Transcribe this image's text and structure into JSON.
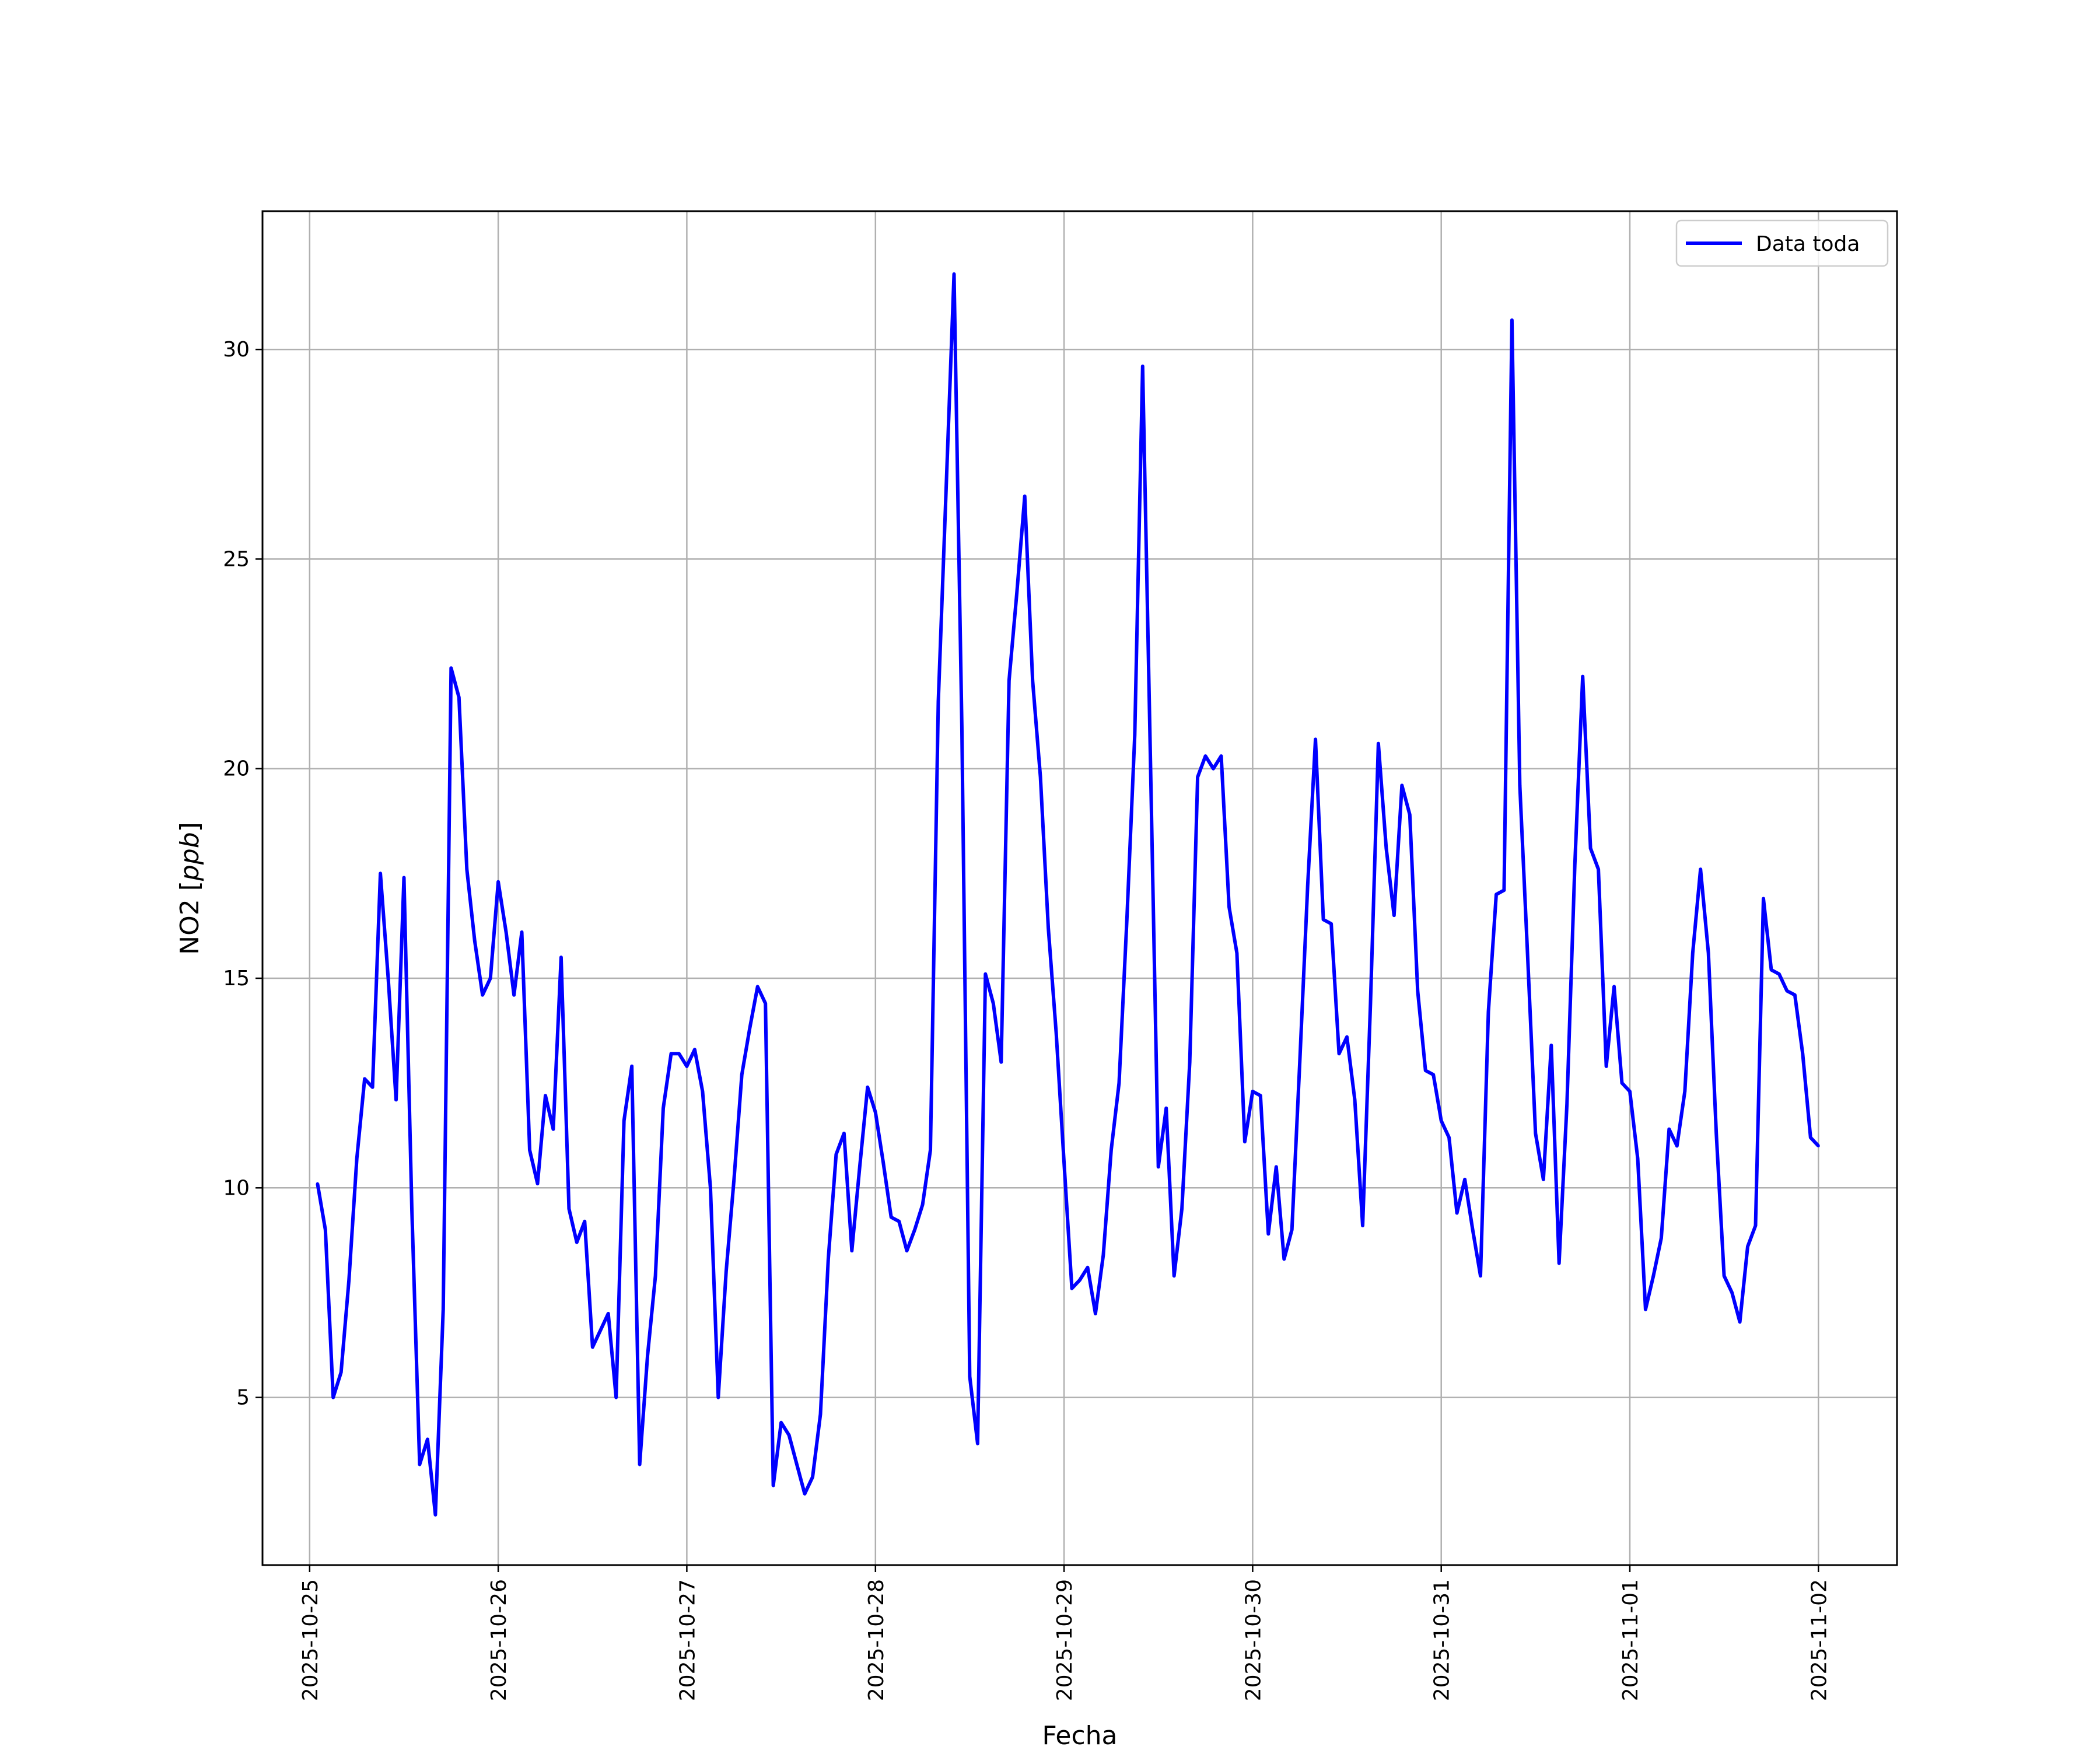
{
  "chart_data": {
    "type": "line",
    "xlabel": "Fecha",
    "ylabel": "NO2 [ppb]",
    "ylabel_parts": {
      "prefix": "NO2 [",
      "italic": "ppb",
      "suffix": "]"
    },
    "xlim": [
      "2025-10-24T18:00",
      "2025-11-02T10:00"
    ],
    "ylim": [
      1.0,
      33.3
    ],
    "x_ticks": [
      "2025-10-25",
      "2025-10-26",
      "2025-10-27",
      "2025-10-28",
      "2025-10-29",
      "2025-10-30",
      "2025-10-31",
      "2025-11-01",
      "2025-11-02"
    ],
    "y_ticks": [
      5,
      10,
      15,
      20,
      25,
      30
    ],
    "grid": true,
    "legend_position": "top-right",
    "series": [
      {
        "name": "Data toda",
        "color": "#0000ff",
        "start": "2025-10-25T01:00",
        "step_hours": 1,
        "values": [
          10.1,
          9.0,
          5.0,
          5.6,
          7.8,
          10.7,
          12.6,
          12.4,
          17.5,
          15.0,
          12.1,
          17.4,
          9.5,
          3.4,
          4.0,
          2.2,
          7.1,
          22.4,
          21.7,
          17.6,
          15.9,
          14.6,
          15.0,
          17.3,
          16.1,
          14.6,
          16.1,
          10.9,
          10.1,
          12.2,
          11.4,
          15.5,
          9.5,
          8.7,
          9.2,
          6.2,
          6.6,
          7.0,
          5.0,
          11.6,
          12.9,
          3.4,
          6.0,
          7.9,
          11.9,
          13.2,
          13.2,
          12.9,
          13.3,
          12.3,
          10.0,
          5.0,
          8.0,
          10.2,
          12.7,
          13.8,
          14.8,
          14.4,
          2.9,
          4.4,
          4.1,
          3.4,
          2.7,
          3.1,
          4.6,
          8.3,
          10.8,
          11.3,
          8.5,
          10.5,
          12.4,
          11.8,
          10.6,
          9.3,
          9.2,
          8.5,
          9.0,
          9.6,
          10.9,
          21.6,
          26.7,
          31.8,
          21.0,
          5.5,
          3.9,
          15.1,
          14.4,
          13.0,
          22.1,
          24.2,
          26.5,
          22.1,
          19.8,
          16.2,
          13.7,
          10.6,
          7.6,
          7.8,
          8.1,
          7.0,
          8.4,
          10.9,
          12.5,
          16.4,
          20.8,
          29.6,
          20.2,
          10.5,
          11.9,
          7.9,
          9.5,
          13.0,
          19.8,
          20.3,
          20.0,
          20.3,
          16.7,
          15.6,
          11.1,
          12.3,
          12.2,
          8.9,
          10.5,
          8.3,
          9.0,
          13.0,
          17.2,
          20.7,
          16.4,
          16.3,
          13.2,
          13.6,
          12.1,
          9.1,
          14.4,
          20.6,
          18.1,
          16.5,
          19.6,
          18.9,
          14.7,
          12.8,
          12.7,
          11.6,
          11.2,
          9.4,
          10.2,
          9.0,
          7.9,
          14.2,
          17.0,
          17.1,
          30.7,
          19.6,
          15.5,
          11.3,
          10.2,
          13.4,
          8.2,
          12.0,
          17.7,
          22.2,
          18.1,
          17.6,
          12.9,
          14.8,
          12.5,
          12.3,
          10.7,
          7.1,
          7.9,
          8.8,
          11.4,
          11.0,
          12.3,
          15.6,
          17.6,
          15.6,
          11.3,
          7.9,
          7.5,
          6.8,
          8.6,
          9.1,
          16.9,
          15.2,
          15.1,
          14.7,
          14.6,
          13.2,
          11.2,
          11.0
        ]
      }
    ]
  }
}
